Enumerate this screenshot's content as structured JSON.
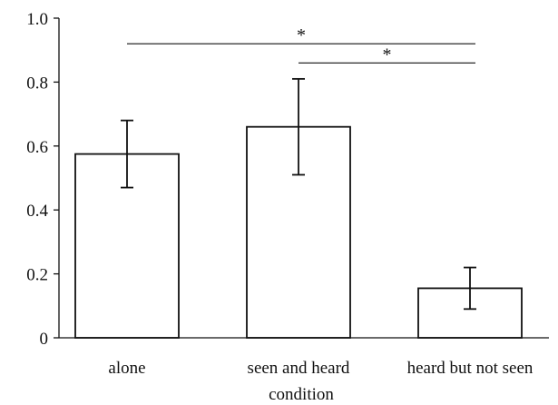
{
  "chart_data": {
    "type": "bar",
    "categories": [
      "alone",
      "seen and heard",
      "heard but not seen"
    ],
    "values": [
      0.575,
      0.66,
      0.155
    ],
    "error_low": [
      0.47,
      0.51,
      0.09
    ],
    "error_high": [
      0.68,
      0.81,
      0.22
    ],
    "xlabel": "condition",
    "ylabel": "",
    "ylim": [
      0,
      1.0
    ],
    "yticks": [
      "0",
      "0.2",
      "0.4",
      "0.6",
      "0.8",
      "1.0"
    ],
    "grid": false,
    "significance": [
      {
        "from": 0,
        "to": 2,
        "y": 0.92,
        "label": "*"
      },
      {
        "from": 1,
        "to": 2,
        "y": 0.86,
        "label": "*"
      }
    ]
  }
}
